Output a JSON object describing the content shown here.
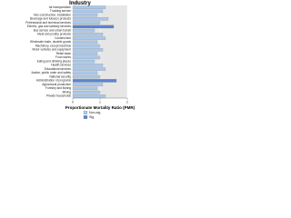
{
  "chart_data": {
    "type": "barh",
    "title": "Industry",
    "x_label": "Proportionate Mortality Ratio (PMR)",
    "categories": [
      "Air transportation",
      "Trucking service",
      "Non-construction, installation",
      "Beverage and tobacco products",
      "Professional and technical services",
      "Electric, gas and sanitary services",
      "Bus service and urban transit",
      "Meat and poultry products",
      "Construction",
      "Wholesale trade, durable goods",
      "Machinery, except electrical",
      "Motor vehicles and equipment",
      "Retail trade",
      "Food stores",
      "Eating and drinking places",
      "Health services",
      "Educational services",
      "Justice, public order and safety",
      "National security",
      "Administration of programs",
      "Agricultural production",
      "Forestry and fishing",
      "Mining",
      "Private households"
    ],
    "series": [
      {
        "name": "Non-sig",
        "color": "#a9c8ea",
        "values": [
          1.2,
          1.1,
          0.9,
          1.3,
          1.0,
          null,
          0.8,
          1.1,
          1.2,
          0.9,
          1.0,
          1.1,
          0.9,
          1.0,
          0.8,
          1.1,
          1.2,
          0.9,
          1.0,
          null,
          1.1,
          0.9,
          1.0,
          1.2
        ]
      },
      {
        "name": "Sig",
        "color": "#5b84cf",
        "values": [
          null,
          null,
          null,
          null,
          null,
          1.5,
          null,
          null,
          null,
          null,
          null,
          null,
          null,
          null,
          null,
          null,
          null,
          null,
          null,
          1.6,
          null,
          null,
          null,
          null
        ]
      }
    ],
    "xlim": [
      0,
      2
    ],
    "xticks": [
      0,
      1,
      2
    ]
  }
}
